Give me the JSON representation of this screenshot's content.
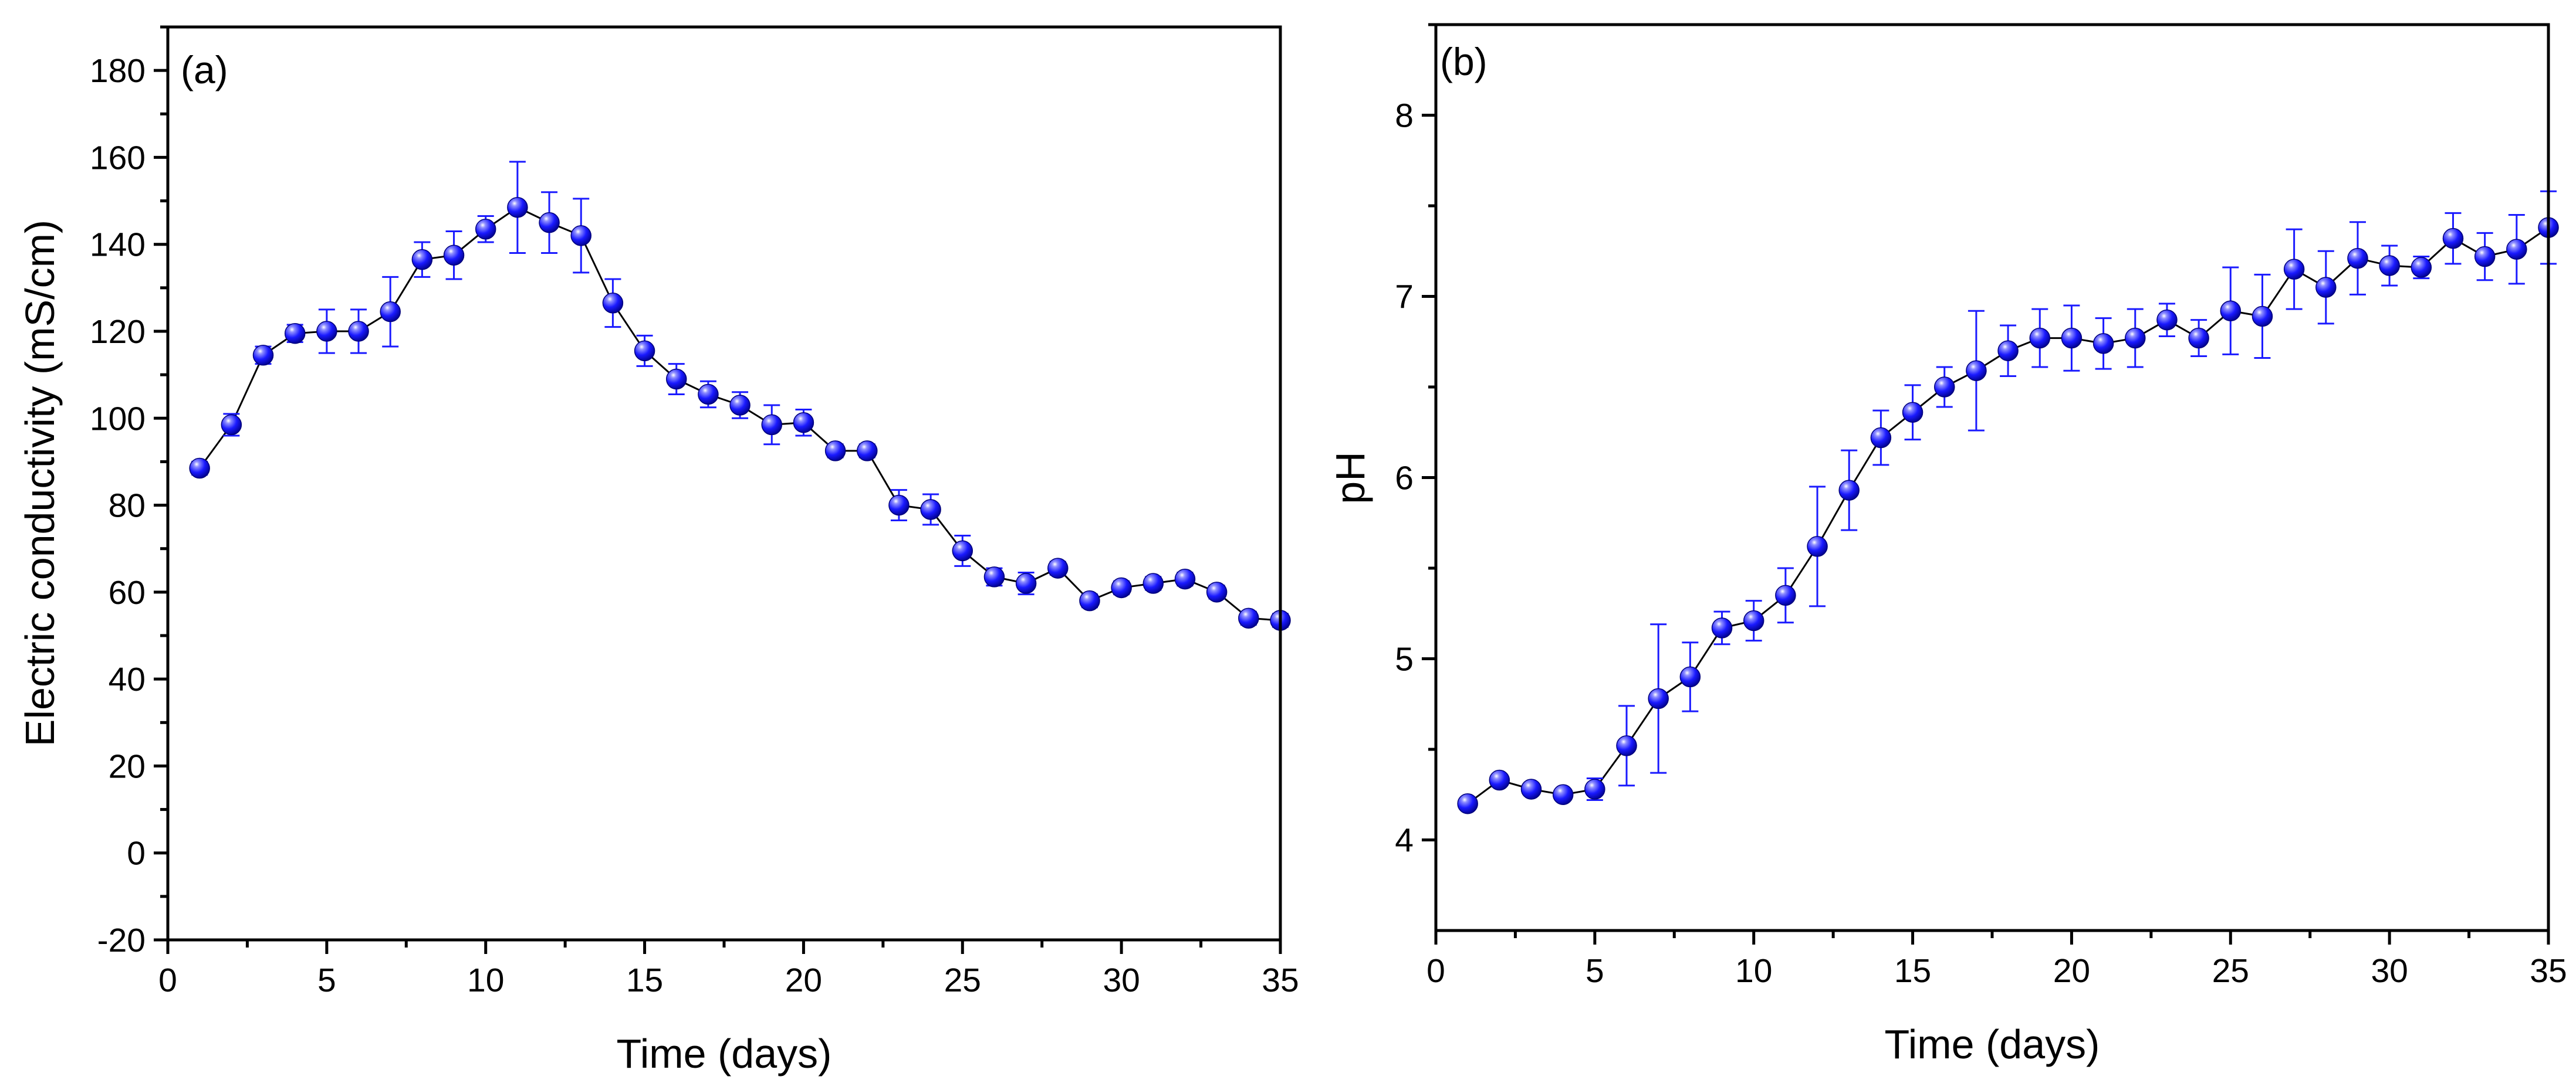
{
  "chart_data": [
    {
      "type": "line",
      "panel_label": "(a)",
      "title": "",
      "xlabel": "Time (days)",
      "ylabel": "Electric conductivity (mS/cm)",
      "xlim": [
        0,
        35
      ],
      "ylim": [
        -20,
        190
      ],
      "x_ticks": [
        0,
        5,
        10,
        15,
        20,
        25,
        30,
        35
      ],
      "y_ticks": [
        -20,
        0,
        20,
        40,
        60,
        80,
        100,
        120,
        140,
        160,
        180
      ],
      "grid": false,
      "series": [
        {
          "name": "Electric conductivity",
          "color": "#1a1aff",
          "x": [
            1,
            2,
            3,
            4,
            5,
            6,
            7,
            8,
            9,
            10,
            11,
            12,
            13,
            14,
            15,
            16,
            17,
            18,
            19,
            20,
            21,
            22,
            23,
            24,
            25,
            26,
            27,
            28,
            29,
            30,
            31,
            32,
            33,
            34,
            35
          ],
          "y": [
            88.5,
            98.5,
            114.5,
            119.5,
            120,
            120,
            124.5,
            136.5,
            137.5,
            143.5,
            148.5,
            145,
            142,
            126.5,
            115.5,
            109,
            105.5,
            103,
            98.5,
            99,
            92.5,
            92.5,
            80,
            79,
            69.5,
            63.5,
            62,
            65.5,
            58,
            61,
            62,
            63,
            60,
            54,
            53.5
          ],
          "err": [
            1.5,
            2.5,
            2,
            2,
            5,
            5,
            8,
            4,
            5.5,
            3,
            10.5,
            7,
            8.5,
            5.5,
            3.5,
            3.5,
            3,
            3,
            4.5,
            3,
            1.5,
            1.5,
            3.5,
            3.5,
            3.5,
            2,
            2.5,
            1.5,
            1.5,
            1.5,
            1.5,
            1.5,
            1.5,
            1.5,
            1.5
          ]
        }
      ]
    },
    {
      "type": "line",
      "panel_label": "(b)",
      "title": "",
      "xlabel": "Time (days)",
      "ylabel": "pH",
      "xlim": [
        0,
        35
      ],
      "ylim": [
        3.5,
        8.5
      ],
      "x_ticks": [
        0,
        5,
        10,
        15,
        20,
        25,
        30,
        35
      ],
      "y_ticks": [
        4,
        5,
        6,
        7,
        8
      ],
      "grid": false,
      "series": [
        {
          "name": "pH",
          "color": "#1a1aff",
          "x": [
            1,
            2,
            3,
            4,
            5,
            6,
            7,
            8,
            9,
            10,
            11,
            12,
            13,
            14,
            15,
            16,
            17,
            18,
            19,
            20,
            21,
            22,
            23,
            24,
            25,
            26,
            27,
            28,
            29,
            30,
            31,
            32,
            33,
            34,
            35
          ],
          "y": [
            4.2,
            4.33,
            4.28,
            4.25,
            4.28,
            4.52,
            4.78,
            4.9,
            5.17,
            5.21,
            5.35,
            5.62,
            5.93,
            6.22,
            6.36,
            6.5,
            6.59,
            6.7,
            6.77,
            6.77,
            6.74,
            6.77,
            6.87,
            6.77,
            6.92,
            6.89,
            7.15,
            7.05,
            7.21,
            7.17,
            7.16,
            7.32,
            7.22,
            7.26,
            7.38
          ],
          "err": [
            0.03,
            0.03,
            0.03,
            0.03,
            0.06,
            0.22,
            0.41,
            0.19,
            0.09,
            0.11,
            0.15,
            0.33,
            0.22,
            0.15,
            0.15,
            0.11,
            0.33,
            0.14,
            0.16,
            0.18,
            0.14,
            0.16,
            0.09,
            0.1,
            0.24,
            0.23,
            0.22,
            0.2,
            0.2,
            0.11,
            0.06,
            0.14,
            0.13,
            0.19,
            0.2
          ]
        }
      ]
    }
  ]
}
